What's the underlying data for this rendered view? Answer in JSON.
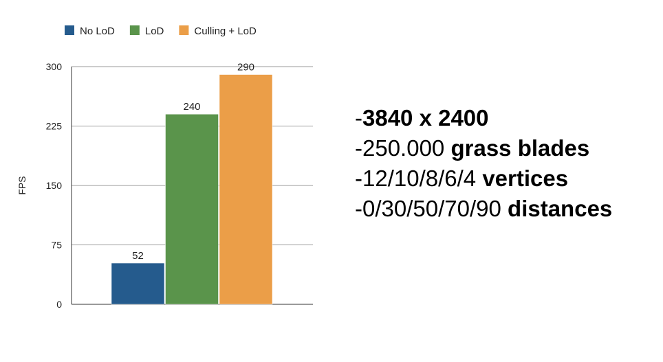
{
  "chart_data": {
    "type": "bar",
    "categories": [
      ""
    ],
    "series": [
      {
        "name": "No LoD",
        "values": [
          52
        ],
        "color": "#255b8d"
      },
      {
        "name": "LoD",
        "values": [
          240
        ],
        "color": "#5a944b"
      },
      {
        "name": "Culling + LoD",
        "values": [
          290
        ],
        "color": "#eb9e48"
      }
    ],
    "ylabel": "FPS",
    "ylim": [
      0,
      300
    ],
    "yticks": [
      "0",
      "75",
      "150",
      "225",
      "300"
    ],
    "grid": true,
    "legend": "top-left"
  },
  "bullets": [
    {
      "prefix": "-",
      "normal": "",
      "bold": "3840 x 2400"
    },
    {
      "prefix": "-",
      "normal": "250.000 ",
      "bold": "grass blades"
    },
    {
      "prefix": "-",
      "normal": "12/10/8/6/4 ",
      "bold": "vertices"
    },
    {
      "prefix": "-",
      "normal": "0/30/50/70/90 ",
      "bold": "distances"
    }
  ]
}
